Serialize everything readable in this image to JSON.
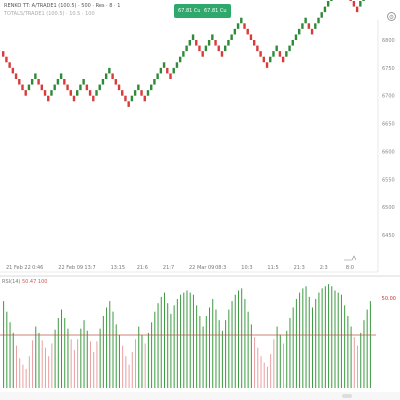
{
  "header": {
    "title": "RENKO TT: A/TRADE1 (100.5) · 500 · Res · 8 · 1",
    "subtitle": "TOTALS/TRADE1 (100.5) · 10.5 · 100"
  },
  "buttons": {
    "buy": "67.81 Cu",
    "sell": "67.81 Cu"
  },
  "icons": {
    "settings": "gear-icon"
  },
  "price_axis": {
    "labels": [
      "6800",
      "6750",
      "6700",
      "6650",
      "6600",
      "6550",
      "6500",
      "6450"
    ]
  },
  "time_axis": {
    "labels": [
      "21 Feb 22",
      "0:46",
      "22 Feb 09",
      "13:7",
      "13:15",
      "21:6",
      "21:7",
      "22 Mar 09",
      "08:3",
      "10:3",
      "11:5",
      "21:3",
      "2:3",
      "8:0"
    ]
  },
  "indicator": {
    "name": "RSI(14)",
    "value": "50.47",
    "value2": "100",
    "level": "50.00"
  },
  "colors": {
    "up": "#2e8b3a",
    "down": "#d93b3b",
    "up_hist": "#3a9a3f",
    "down_hist": "#e8a0a0",
    "level": "#b85a4a",
    "button": "#2ea86b"
  },
  "chart_data": {
    "type": "renko",
    "box_size": 10,
    "start_price": 6780,
    "bricks": [
      "down",
      "down",
      "down",
      "down",
      "down",
      "down",
      "down",
      "down",
      "up",
      "up",
      "up",
      "down",
      "down",
      "down",
      "down",
      "up",
      "up",
      "up",
      "up",
      "down",
      "down",
      "down",
      "down",
      "up",
      "up",
      "up",
      "down",
      "down",
      "down",
      "up",
      "up",
      "up",
      "up",
      "up",
      "down",
      "down",
      "down",
      "down",
      "down",
      "down",
      "up",
      "up",
      "up",
      "down",
      "down",
      "up",
      "up",
      "up",
      "up",
      "up",
      "up",
      "down",
      "down",
      "up",
      "up",
      "up",
      "up",
      "up",
      "up",
      "up",
      "down",
      "down",
      "down",
      "up",
      "up",
      "up",
      "down",
      "down",
      "down",
      "up",
      "up",
      "up",
      "up",
      "up",
      "up",
      "down",
      "down",
      "down",
      "down",
      "down",
      "down",
      "down",
      "down",
      "up",
      "up",
      "up",
      "down",
      "down",
      "up",
      "up",
      "up",
      "up",
      "up",
      "up",
      "up",
      "down",
      "down",
      "up",
      "up",
      "up",
      "up",
      "up",
      "up",
      "up",
      "up",
      "up",
      "down",
      "down",
      "down",
      "down",
      "down",
      "up",
      "up",
      "up",
      "up"
    ],
    "histogram": {
      "values": [
        0.82,
        0.72,
        0.62,
        0.52,
        0.4,
        0.28,
        0.22,
        0.18,
        0.3,
        0.45,
        0.58,
        0.52,
        0.45,
        0.38,
        0.3,
        0.42,
        0.55,
        0.66,
        0.74,
        0.66,
        0.56,
        0.46,
        0.36,
        0.46,
        0.56,
        0.64,
        0.54,
        0.44,
        0.34,
        0.44,
        0.56,
        0.68,
        0.76,
        0.82,
        0.72,
        0.6,
        0.5,
        0.4,
        0.3,
        0.22,
        0.34,
        0.46,
        0.58,
        0.5,
        0.42,
        0.52,
        0.62,
        0.72,
        0.8,
        0.86,
        0.9,
        0.8,
        0.7,
        0.78,
        0.84,
        0.88,
        0.9,
        0.92,
        0.9,
        0.88,
        0.78,
        0.68,
        0.58,
        0.68,
        0.76,
        0.84,
        0.74,
        0.64,
        0.54,
        0.64,
        0.74,
        0.82,
        0.88,
        0.92,
        0.94,
        0.84,
        0.72,
        0.6,
        0.48,
        0.38,
        0.3,
        0.24,
        0.2,
        0.32,
        0.46,
        0.58,
        0.5,
        0.42,
        0.54,
        0.66,
        0.76,
        0.84,
        0.9,
        0.94,
        0.96,
        0.86,
        0.76,
        0.84,
        0.9,
        0.94,
        0.96,
        0.98,
        0.96,
        0.92,
        0.9,
        0.88,
        0.78,
        0.68,
        0.58,
        0.48,
        0.4,
        0.52,
        0.64,
        0.74,
        0.82
      ],
      "level": 0.5
    }
  }
}
